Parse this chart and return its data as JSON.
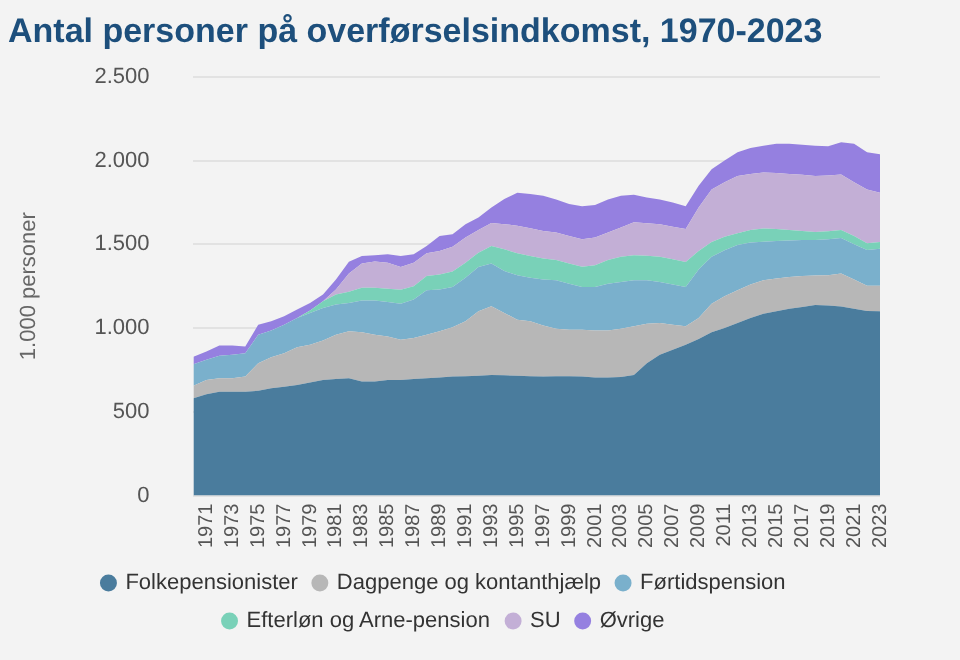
{
  "chart_data": {
    "type": "area",
    "title": "Antal personer på overførselsindkomst, 1970-2023",
    "ylabel": "1.000 personer",
    "categories": [
      null,
      "1971",
      null,
      "1973",
      null,
      "1975",
      null,
      "1977",
      null,
      "1979",
      null,
      "1981",
      null,
      "1983",
      null,
      "1985",
      null,
      "1987",
      null,
      "1989",
      null,
      "1991",
      null,
      "1993",
      null,
      "1995",
      null,
      "1997",
      null,
      "1999",
      null,
      "2001",
      null,
      "2003",
      null,
      "2005",
      null,
      "2007",
      null,
      "2009",
      null,
      "2011",
      null,
      "2013",
      null,
      "2015",
      null,
      "2017",
      null,
      "2019",
      null,
      "2021",
      null,
      "2023"
    ],
    "stacked": true,
    "ylim": [
      0,
      2500
    ],
    "yticks": [
      0,
      500,
      {
        "value": 1000,
        "label": "1.000"
      },
      {
        "value": 1500,
        "label": "1.500"
      },
      {
        "value": 2000,
        "label": "2.000"
      },
      {
        "value": 2500,
        "label": "2.500"
      }
    ],
    "grid": "y",
    "legend": "bottom",
    "series": [
      {
        "name": "Folkepensionister",
        "color": "#4a7c9d",
        "values": [
          580,
          605,
          620,
          620,
          620,
          625,
          640,
          650,
          660,
          675,
          690,
          695,
          700,
          680,
          680,
          690,
          690,
          695,
          700,
          705,
          710,
          712,
          715,
          720,
          718,
          715,
          712,
          710,
          712,
          712,
          710,
          705,
          705,
          708,
          720,
          790,
          840,
          870,
          900,
          935,
          975,
          1000,
          1030,
          1060,
          1085,
          1100,
          1115,
          1125,
          1137,
          1135,
          1129,
          1115,
          1101,
          1100
        ]
      },
      {
        "name": "Dagpenge og kontanthjælp",
        "color": "#b7b7b7",
        "values": [
          75,
          85,
          80,
          80,
          90,
          165,
          185,
          200,
          225,
          225,
          235,
          265,
          280,
          295,
          280,
          260,
          240,
          245,
          260,
          275,
          295,
          328,
          385,
          410,
          372,
          335,
          328,
          305,
          283,
          278,
          280,
          280,
          280,
          287,
          290,
          235,
          190,
          150,
          110,
          125,
          170,
          190,
          195,
          200,
          200,
          195,
          190,
          185,
          176,
          180,
          196,
          175,
          152,
          153
        ]
      },
      {
        "name": "Førtidspension",
        "color": "#7ab0cc",
        "values": [
          128,
          120,
          135,
          140,
          140,
          170,
          160,
          170,
          175,
          190,
          195,
          180,
          170,
          190,
          205,
          205,
          215,
          230,
          265,
          250,
          240,
          260,
          265,
          255,
          250,
          265,
          260,
          275,
          290,
          275,
          255,
          260,
          280,
          280,
          275,
          260,
          245,
          240,
          235,
          290,
          280,
          275,
          270,
          250,
          230,
          225,
          217,
          215,
          213,
          215,
          213,
          210,
          213,
          221
        ]
      },
      {
        "name": "Efterløn og Arne-pension",
        "color": "#79d1b8",
        "values": [
          0,
          0,
          0,
          0,
          0,
          0,
          0,
          0,
          0,
          15,
          40,
          60,
          67,
          75,
          76,
          80,
          84,
          80,
          85,
          90,
          92,
          90,
          85,
          105,
          130,
          131,
          130,
          125,
          121,
          120,
          121,
          130,
          141,
          150,
          149,
          147,
          151,
          150,
          149,
          110,
          89,
          80,
          71,
          75,
          79,
          72,
          64,
          55,
          48,
          48,
          48,
          50,
          40,
          40
        ]
      },
      {
        "name": "SU",
        "color": "#c3afd6",
        "values": [
          0,
          0,
          0,
          0,
          0,
          0,
          0,
          0,
          0,
          0,
          0,
          30,
          108,
          145,
          156,
          155,
          136,
          140,
          136,
          140,
          149,
          150,
          136,
          137,
          150,
          165,
          165,
          165,
          164,
          165,
          164,
          165,
          164,
          175,
          197,
          193,
          193,
          195,
          197,
          260,
          313,
          325,
          342,
          335,
          334,
          333,
          334,
          335,
          334,
          332,
          330,
          320,
          321,
          293
        ]
      },
      {
        "name": "Øvrige",
        "color": "#9580e0",
        "values": [
          45,
          50,
          60,
          55,
          40,
          60,
          55,
          50,
          50,
          45,
          40,
          60,
          70,
          45,
          38,
          50,
          65,
          50,
          44,
          90,
          74,
          80,
          74,
          93,
          150,
          197,
          205,
          210,
          198,
          190,
          197,
          195,
          197,
          190,
          165,
          155,
          148,
          145,
          136,
          130,
          121,
          130,
          141,
          155,
          161,
          175,
          180,
          180,
          181,
          175,
          193,
          230,
          222,
          230
        ]
      }
    ]
  }
}
